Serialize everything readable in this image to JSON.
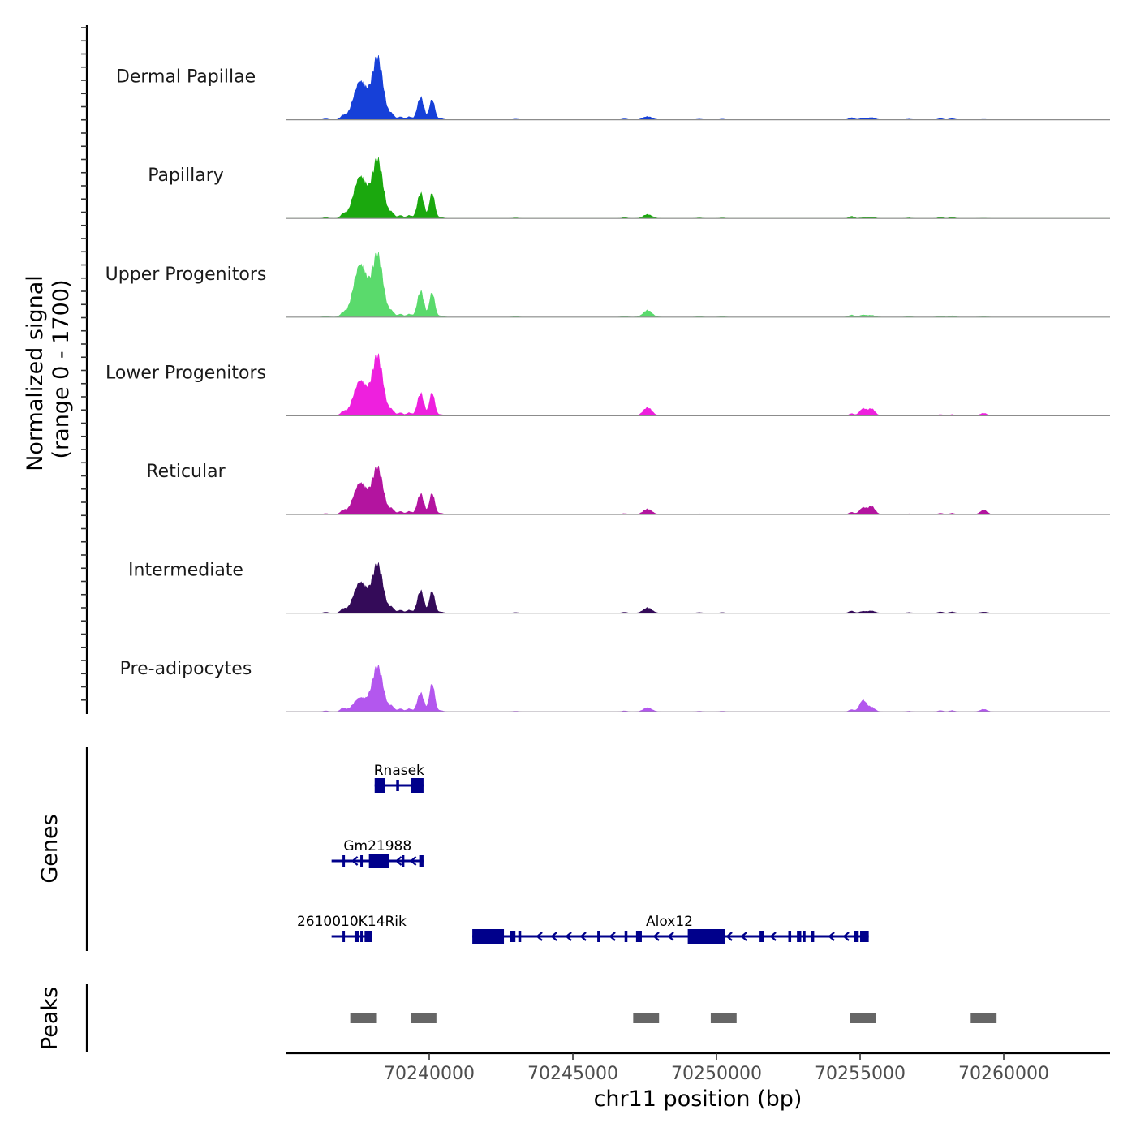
{
  "chart_data": {
    "type": "area",
    "description_type": "genome-coverage-tracks",
    "chromosome": "chr11",
    "xlabel": "chr11 position (bp)",
    "ylabel_line1": "Normalized signal",
    "ylabel_line2": "(range 0 - 1700)",
    "y_range": [
      0,
      1700
    ],
    "xlim": [
      70235000,
      70263700
    ],
    "x_ticks": [
      70240000,
      70245000,
      70250000,
      70255000,
      70260000
    ],
    "x_tick_labels": [
      "70240000",
      "70245000",
      "70250000",
      "70255000",
      "70260000"
    ],
    "peak_centers": [
      70237600,
      70238200,
      70239700,
      70240100,
      70247600,
      70255100,
      70255400,
      70259300
    ],
    "series": [
      {
        "name": "Dermal Papillae",
        "color": "#1640D8",
        "values": [
          1100,
          1700,
          620,
          580,
          90,
          40,
          60,
          10
        ]
      },
      {
        "name": "Papillary",
        "color": "#1BA80E",
        "values": [
          1200,
          1600,
          700,
          720,
          110,
          20,
          40,
          10
        ]
      },
      {
        "name": "Upper Progenitors",
        "color": "#5ADA6C",
        "values": [
          1500,
          1700,
          720,
          700,
          190,
          60,
          50,
          10
        ]
      },
      {
        "name": "Lower Progenitors",
        "color": "#EE20DE",
        "values": [
          1000,
          1640,
          620,
          660,
          230,
          200,
          190,
          70
        ]
      },
      {
        "name": "Reticular",
        "color": "#B3149F",
        "values": [
          900,
          1280,
          570,
          600,
          150,
          190,
          220,
          120
        ]
      },
      {
        "name": "Intermediate",
        "color": "#340B59",
        "values": [
          880,
          1330,
          620,
          630,
          150,
          50,
          60,
          30
        ]
      },
      {
        "name": "Pre-adipocytes",
        "color": "#B357EE",
        "values": [
          400,
          1250,
          520,
          800,
          110,
          330,
          120,
          70
        ]
      }
    ],
    "genes_title": "Genes",
    "genes": [
      {
        "name": "Rnasek",
        "start": 70238100,
        "end": 70239800,
        "strand": "-",
        "exons": [
          [
            70238100,
            70238450
          ],
          [
            70238850,
            70238950
          ],
          [
            70239350,
            70239800
          ]
        ]
      },
      {
        "name": "Gm21988",
        "start": 70236600,
        "end": 70239800,
        "strand": "-",
        "exons": [
          [
            70236980,
            70237050
          ],
          [
            70237600,
            70237680
          ],
          [
            70237900,
            70238600
          ],
          [
            70239050,
            70239130
          ],
          [
            70239650,
            70239800
          ]
        ]
      },
      {
        "name": "2610010K14Rik",
        "start": 70236600,
        "end": 70238000,
        "strand": "-",
        "exons": [
          [
            70236980,
            70237050
          ],
          [
            70237400,
            70237550
          ],
          [
            70237600,
            70237650
          ],
          [
            70237750,
            70238000
          ]
        ]
      },
      {
        "name": "Alox12",
        "start": 70241500,
        "end": 70255300,
        "strand": "-",
        "exons": [
          [
            70241500,
            70242600
          ],
          [
            70242800,
            70243000
          ],
          [
            70243100,
            70243200
          ],
          [
            70245850,
            70245950
          ],
          [
            70246800,
            70246900
          ],
          [
            70247200,
            70247400
          ],
          [
            70249000,
            70250300
          ],
          [
            70251500,
            70251650
          ],
          [
            70252500,
            70252600
          ],
          [
            70252800,
            70252950
          ],
          [
            70253000,
            70253100
          ],
          [
            70253300,
            70253400
          ],
          [
            70254800,
            70254950
          ],
          [
            70255000,
            70255300
          ]
        ]
      }
    ],
    "peaks_title": "Peaks",
    "peaks": [
      [
        70237250,
        70238150
      ],
      [
        70239350,
        70240250
      ],
      [
        70247100,
        70248000
      ],
      [
        70249800,
        70250700
      ],
      [
        70254650,
        70255550
      ],
      [
        70258850,
        70259750
      ]
    ]
  }
}
